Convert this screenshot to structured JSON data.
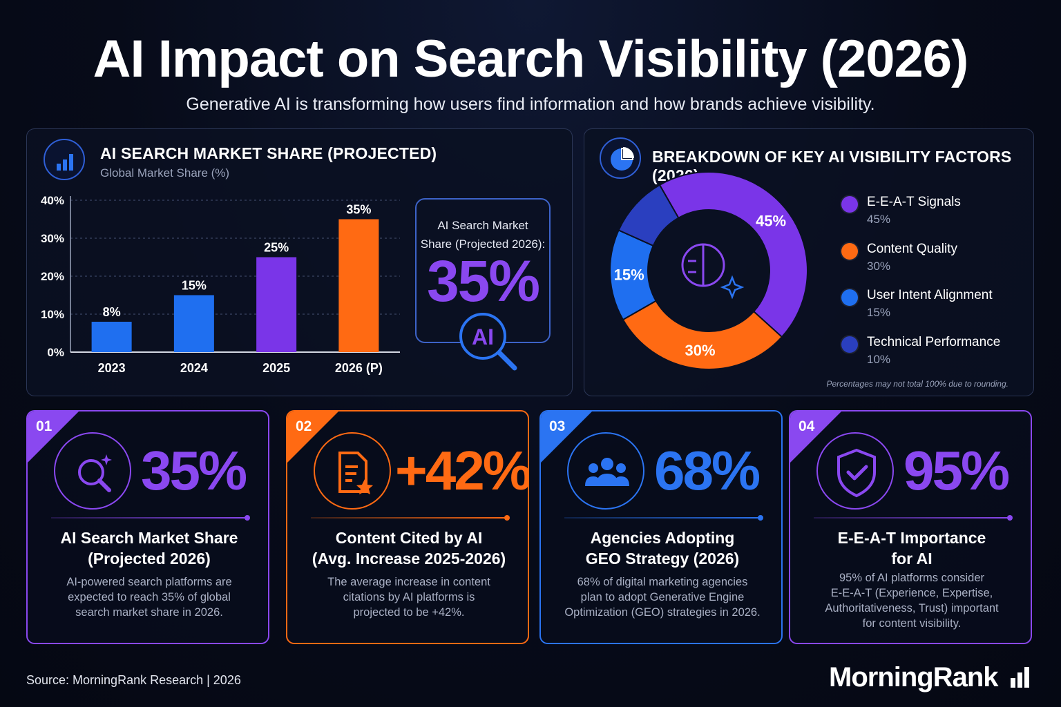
{
  "header": {
    "title": "AI Impact on Search Visibility (2026)",
    "subtitle": "Generative AI is transforming how users find information and how brands achieve visibility."
  },
  "bar_panel": {
    "title": "AI SEARCH MARKET SHARE (PROJECTED)",
    "subtitle": "Global Market Share (%)",
    "callout_label_1": "AI Search Market",
    "callout_label_2": "Share (Projected 2026):",
    "callout_value": "35%",
    "callout_icon_text": "AI",
    "icon": "bar-chart-icon"
  },
  "donut_panel": {
    "title": "BREAKDOWN OF KEY AI VISIBILITY FACTORS (2026)",
    "footnote": "Percentages may not total 100% due to rounding.",
    "icon": "pie-chart-icon",
    "center_icon": "brain-sparkle-icon"
  },
  "chart_data": [
    {
      "type": "bar",
      "title": "AI SEARCH MARKET SHARE (PROJECTED)",
      "ylabel": "Global Market Share (%)",
      "categories": [
        "2023",
        "2024",
        "2025",
        "2026 (P)"
      ],
      "values": [
        8,
        15,
        25,
        35
      ],
      "value_labels": [
        "8%",
        "15%",
        "25%",
        "35%"
      ],
      "colors": [
        "#1f6ff0",
        "#1f6ff0",
        "#7a35e8",
        "#ff6a13"
      ],
      "ylim": [
        0,
        40
      ],
      "yticks": [
        0,
        10,
        20,
        30,
        40
      ],
      "ytick_labels": [
        "0%",
        "10%",
        "20%",
        "30%",
        "40%"
      ],
      "grid": true
    },
    {
      "type": "pie",
      "title": "BREAKDOWN OF KEY AI VISIBILITY FACTORS (2026)",
      "donut": true,
      "slices": [
        {
          "name": "E-E-A-T Signals",
          "value": 45,
          "label": "45%",
          "color": "#7a35e8"
        },
        {
          "name": "Content Quality",
          "value": 30,
          "label": "30%",
          "color": "#ff6a13"
        },
        {
          "name": "User Intent Alignment",
          "value": 15,
          "label": "15%",
          "color": "#1f6ff0"
        },
        {
          "name": "Technical Performance",
          "value": 10,
          "label": "10%",
          "color": "#2a3fbf"
        }
      ],
      "legend_placement": "right"
    }
  ],
  "cards": [
    {
      "num": "01",
      "value": "35%",
      "title_1": "AI Search Market Share",
      "title_2": "(Projected 2026)",
      "desc_1": "AI-powered search platforms are",
      "desc_2": "expected to reach 35% of global",
      "desc_3": "search market share in 2026.",
      "desc_4": "",
      "color": "#8a48f0",
      "icon": "search-sparkle-icon"
    },
    {
      "num": "02",
      "value": "+42%",
      "title_1": "Content Cited by AI",
      "title_2": "(Avg. Increase 2025-2026)",
      "desc_1": "The average increase in content",
      "desc_2": "citations by AI platforms is",
      "desc_3": "projected to be +42%.",
      "desc_4": "",
      "color": "#ff6a13",
      "icon": "document-star-icon"
    },
    {
      "num": "03",
      "value": "68%",
      "title_1": "Agencies Adopting",
      "title_2": "GEO Strategy (2026)",
      "desc_1": "68% of digital marketing agencies",
      "desc_2": "plan to adopt Generative Engine",
      "desc_3": "Optimization (GEO) strategies in 2026.",
      "desc_4": "",
      "color": "#2b74f2",
      "icon": "people-group-icon"
    },
    {
      "num": "04",
      "value": "95%",
      "title_1": "E-E-A-T Importance",
      "title_2": "for AI",
      "desc_1": "95% of AI platforms consider",
      "desc_2": "E-E-A-T (Experience, Expertise,",
      "desc_3": "Authoritativeness, Trust) important",
      "desc_4": "for content visibility.",
      "color": "#8a48f0",
      "icon": "shield-check-icon"
    }
  ],
  "footer": {
    "source": "Source:  MorningRank Research | 2026",
    "brand": "MorningRank",
    "brand_icon": "bar-chart-icon"
  }
}
